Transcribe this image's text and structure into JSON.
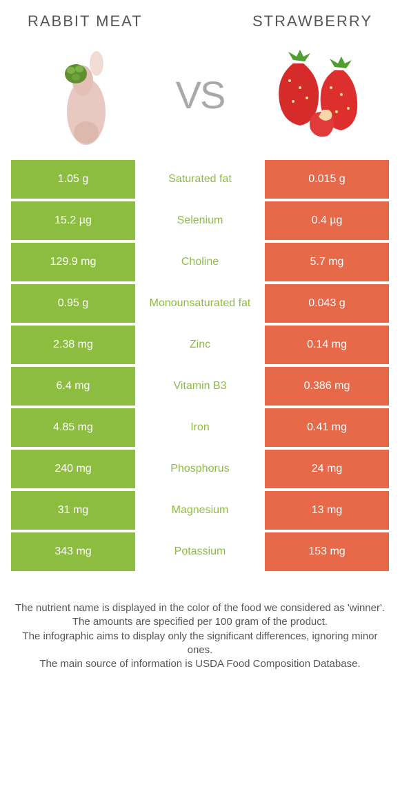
{
  "left_title": "RABBIT MEAT",
  "right_title": "STRAWBERRY",
  "vs_label": "VS",
  "colors": {
    "left": "#8dbd40",
    "right": "#e6694a",
    "mid_bg": "#ffffff",
    "title": "#555555",
    "vs": "#a9a9a9",
    "footnote": "#555555"
  },
  "rows": [
    {
      "left": "1.05 g",
      "label": "Saturated fat",
      "right": "0.015 g",
      "winner": "left"
    },
    {
      "left": "15.2 µg",
      "label": "Selenium",
      "right": "0.4 µg",
      "winner": "left"
    },
    {
      "left": "129.9 mg",
      "label": "Choline",
      "right": "5.7 mg",
      "winner": "left"
    },
    {
      "left": "0.95 g",
      "label": "Monounsaturated fat",
      "right": "0.043 g",
      "winner": "left"
    },
    {
      "left": "2.38 mg",
      "label": "Zinc",
      "right": "0.14 mg",
      "winner": "left"
    },
    {
      "left": "6.4 mg",
      "label": "Vitamin B3",
      "right": "0.386 mg",
      "winner": "left"
    },
    {
      "left": "4.85 mg",
      "label": "Iron",
      "right": "0.41 mg",
      "winner": "left"
    },
    {
      "left": "240 mg",
      "label": "Phosphorus",
      "right": "24 mg",
      "winner": "left"
    },
    {
      "left": "31 mg",
      "label": "Magnesium",
      "right": "13 mg",
      "winner": "left"
    },
    {
      "left": "343 mg",
      "label": "Potassium",
      "right": "153 mg",
      "winner": "left"
    }
  ],
  "footnotes": [
    "The nutrient name is displayed in the color of the food we considered as 'winner'.",
    "The amounts are specified per 100 gram of the product.",
    "The infographic aims to display only the significant differences, ignoring minor ones.",
    "The main source of information is USDA Food Composition Database."
  ]
}
